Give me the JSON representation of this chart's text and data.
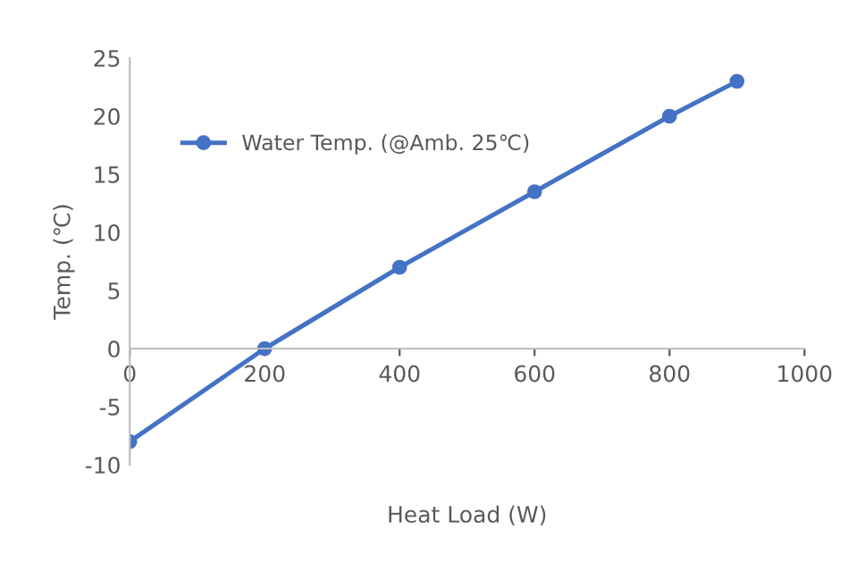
{
  "chart_data": {
    "type": "line",
    "xlabel": "Heat Load (W)",
    "ylabel": "Temp. (℃)",
    "x": [
      0,
      200,
      400,
      600,
      800,
      900
    ],
    "series": [
      {
        "name": "Water Temp. (@Amb. 25℃)",
        "color": "#4472c4",
        "values": [
          -8,
          0,
          7,
          13.5,
          20,
          23
        ]
      }
    ],
    "xlim": [
      0,
      1000
    ],
    "xticks": [
      0,
      200,
      400,
      600,
      800,
      1000
    ],
    "ylim": [
      -10,
      25
    ],
    "yticks": [
      -10,
      -5,
      0,
      5,
      10,
      15,
      20,
      25
    ],
    "marker": "circle",
    "line_style": "solid",
    "grid": false,
    "legend": "top left"
  }
}
